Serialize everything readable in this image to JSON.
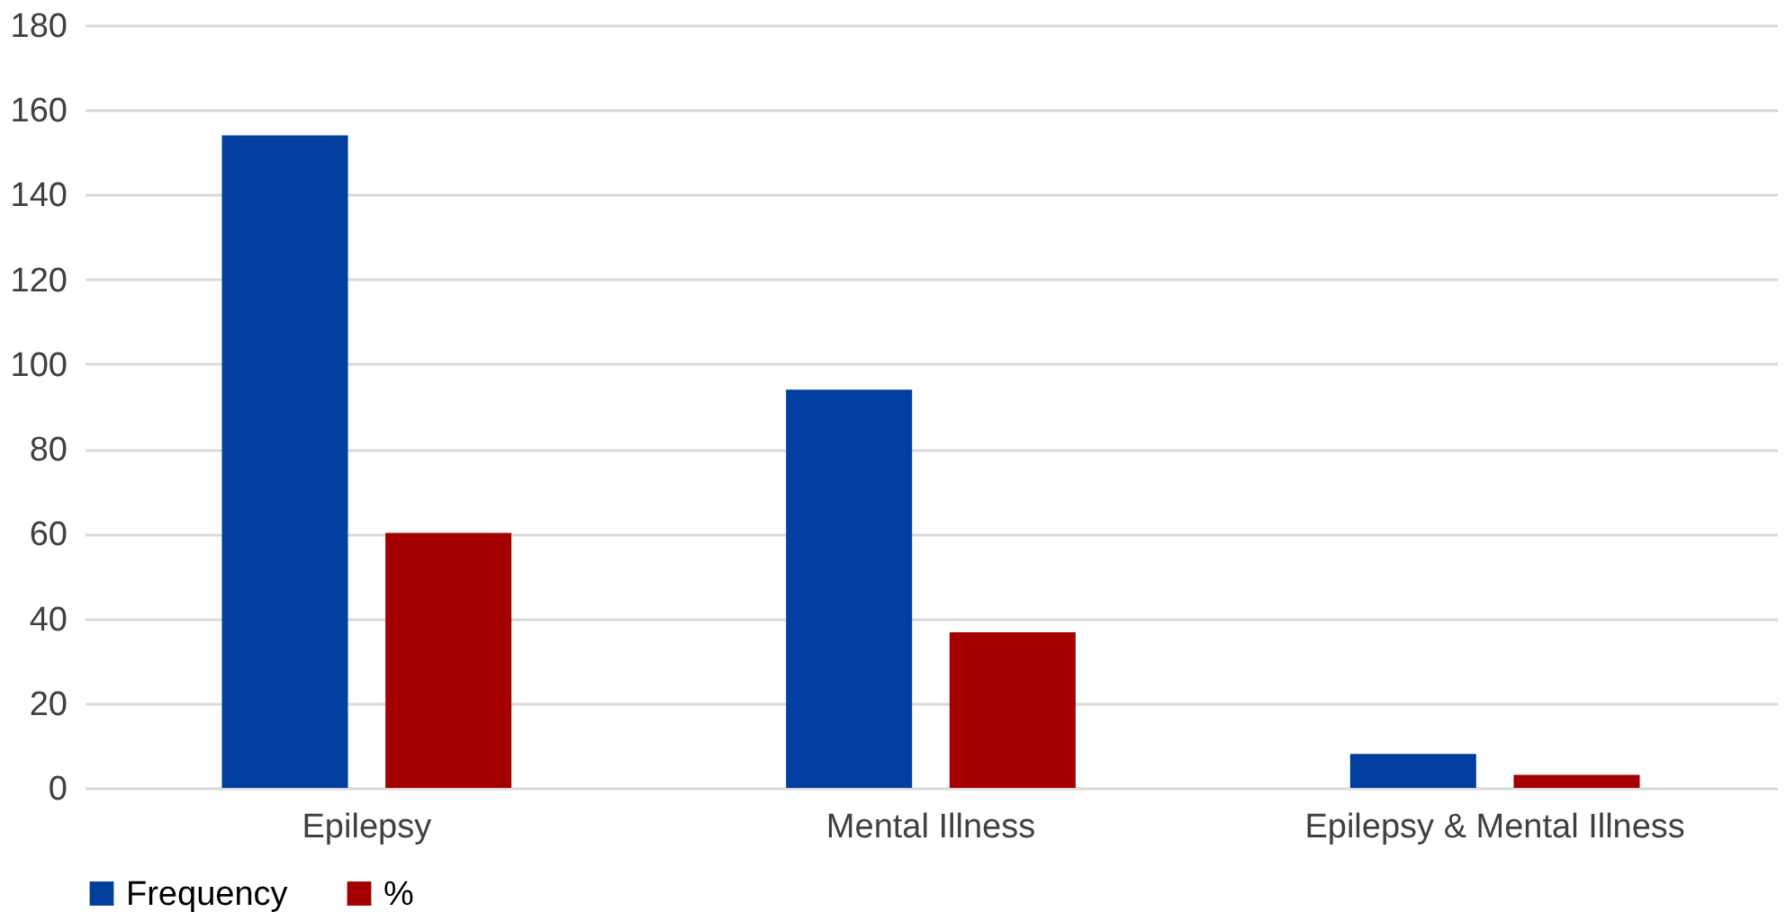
{
  "chart_data": {
    "type": "bar",
    "categories": [
      "Epilepsy",
      "Mental Illness",
      "Epilepsy & Mental Illness"
    ],
    "series": [
      {
        "name": "Frequency",
        "color": "#003f9e",
        "values": [
          154,
          94,
          8
        ]
      },
      {
        "name": "%",
        "color": "#a50000",
        "values": [
          60.2,
          36.7,
          3.1
        ]
      }
    ],
    "ylim": [
      0,
      180
    ],
    "yticks": [
      0,
      20,
      40,
      60,
      80,
      100,
      120,
      140,
      160,
      180
    ],
    "grid": "y",
    "legend": "bottom"
  }
}
